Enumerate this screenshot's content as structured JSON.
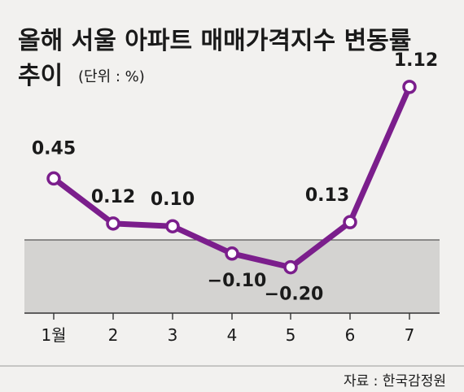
{
  "title_line1": "올해 서울 아파트 매매가격지수 변동률",
  "title_line2": "추이",
  "unit": "(단위 : %)",
  "source": "자료 : 한국감정원",
  "colors": {
    "line": "#7b1e8c",
    "point_fill": "#ffffff",
    "negative_band": "#d4d3d1",
    "background": "#f2f1ef"
  },
  "chart_data": {
    "type": "line",
    "categories": [
      "1월",
      "2",
      "3",
      "4",
      "5",
      "6",
      "7"
    ],
    "values": [
      0.45,
      0.12,
      0.1,
      -0.1,
      -0.2,
      0.13,
      1.12
    ],
    "value_labels": [
      "0.45",
      "0.12",
      "0.10",
      "−0.10",
      "−0.20",
      "0.13",
      "1.12"
    ],
    "ylim": [
      -0.9,
      1.3
    ],
    "zero_line": true,
    "grid": false,
    "legend": "none"
  }
}
